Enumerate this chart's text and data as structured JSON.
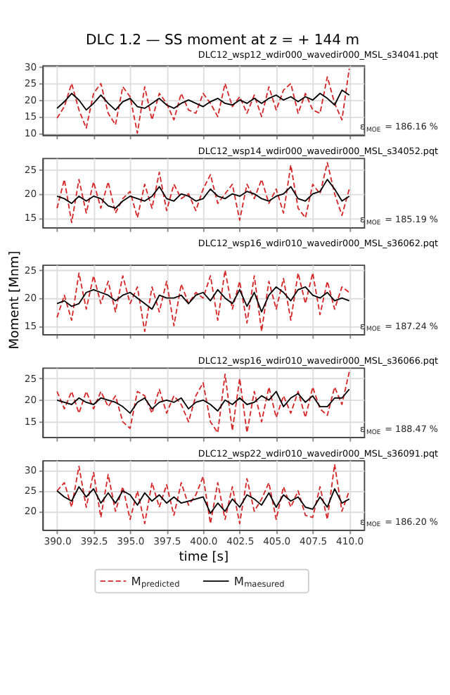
{
  "chart_data": [
    {
      "type": "line",
      "title": "DLC 1.2 — SS moment at z = + 144 m",
      "subtitle": "DLC12_wsp12_wdir000_wavedir000_MSL_s34041.pqt",
      "annotations": [
        "ε$_{MOE}$ = 186.16 %"
      ],
      "xlim": [
        389,
        411
      ],
      "xticks": [
        390.0,
        392.5,
        395.0,
        397.5,
        400.0,
        402.5,
        405.0,
        407.5,
        410.0
      ],
      "ylim": [
        9.5,
        30.5
      ],
      "yticks": [
        10,
        15,
        20,
        25,
        30
      ],
      "grid": true,
      "tick_labels": "y",
      "x": [
        390,
        390.5,
        391,
        391.5,
        392,
        392.5,
        393,
        393.5,
        394,
        394.5,
        395,
        395.5,
        396,
        396.5,
        397,
        397.5,
        398,
        398.5,
        399,
        399.5,
        400,
        400.5,
        401,
        401.5,
        402,
        402.5,
        403,
        403.5,
        404,
        404.5,
        405,
        405.5,
        406,
        406.5,
        407,
        407.5,
        408,
        408.5,
        409,
        409.5,
        410
      ],
      "series": [
        {
          "color": "#d62728",
          "line_style": "dashed",
          "values": [
            14.5,
            18,
            25,
            17,
            11.5,
            22,
            25,
            16,
            12.5,
            24,
            21,
            10,
            24,
            14,
            22,
            19,
            14,
            22,
            17,
            16,
            22,
            19,
            15,
            25,
            18,
            21,
            16,
            21.5,
            15,
            24,
            17,
            23,
            25,
            16,
            22,
            17,
            16,
            27,
            19,
            14,
            29.5
          ]
        },
        {
          "color": "#000000",
          "line_style": "solid",
          "values": [
            17.5,
            19.5,
            22,
            20,
            17,
            19,
            21.5,
            19,
            17,
            19.5,
            20.5,
            18,
            17.5,
            19,
            20.5,
            18.5,
            17.5,
            19,
            20,
            19,
            18,
            19.5,
            20.5,
            19,
            18.5,
            20,
            19,
            20.5,
            19,
            20.5,
            21.5,
            20,
            21,
            19.5,
            21,
            20,
            22,
            20.5,
            18.5,
            23,
            21.5
          ]
        }
      ]
    },
    {
      "type": "line",
      "subtitle": "DLC12_wsp14_wdir000_wavedir000_MSL_s34052.pqt",
      "annotations": [
        "ε$_{MOE}$ = 185.19 %"
      ],
      "xlim": [
        389,
        411
      ],
      "xticks": [
        390.0,
        392.5,
        395.0,
        397.5,
        400.0,
        402.5,
        405.0,
        407.5,
        410.0
      ],
      "ylim": [
        13,
        27.5
      ],
      "yticks": [
        15,
        20,
        25
      ],
      "grid": true,
      "tick_labels": "y",
      "x": [
        390,
        390.5,
        391,
        391.5,
        392,
        392.5,
        393,
        393.5,
        394,
        394.5,
        395,
        395.5,
        396,
        396.5,
        397,
        397.5,
        398,
        398.5,
        399,
        399.5,
        400,
        400.5,
        401,
        401.5,
        402,
        402.5,
        403,
        403.5,
        404,
        404.5,
        405,
        405.5,
        406,
        406.5,
        407,
        407.5,
        408,
        408.5,
        409,
        409.5,
        410
      ],
      "series": [
        {
          "color": "#d62728",
          "line_style": "dashed",
          "values": [
            17,
            23,
            14,
            23,
            16,
            22.5,
            17,
            22.5,
            16,
            19,
            20.5,
            15,
            22,
            17,
            24.5,
            16.5,
            22,
            19,
            20,
            16.5,
            21,
            24,
            18,
            20,
            22,
            14.5,
            22,
            19,
            23,
            18,
            21,
            16,
            26,
            17,
            15,
            22,
            20,
            26.5,
            20,
            15.5,
            21
          ]
        },
        {
          "color": "#000000",
          "line_style": "solid",
          "values": [
            19.5,
            19,
            18,
            19.5,
            18.5,
            19.5,
            19,
            17.5,
            17,
            18.5,
            19.5,
            19,
            18.5,
            19.5,
            21.5,
            19,
            18.5,
            20,
            19.5,
            18.5,
            19,
            21,
            19.5,
            19,
            20,
            19.5,
            20.5,
            20,
            19,
            18.5,
            19.5,
            20,
            21.5,
            19,
            18.5,
            20,
            20.5,
            23,
            21,
            18.5,
            19.5
          ]
        }
      ]
    },
    {
      "type": "line",
      "subtitle": "DLC12_wsp16_wdir010_wavedir000_MSL_s36062.pqt",
      "ylabel": "Moment [Mnm]",
      "annotations": [
        "ε$_{MOE}$ = 187.24 %"
      ],
      "xlim": [
        389,
        411
      ],
      "xticks": [
        390.0,
        392.5,
        395.0,
        397.5,
        400.0,
        402.5,
        405.0,
        407.5,
        410.0
      ],
      "ylim": [
        13.5,
        26
      ],
      "yticks": [
        15,
        20,
        25
      ],
      "grid": true,
      "tick_labels": "y",
      "x": [
        390,
        390.5,
        391,
        391.5,
        392,
        392.5,
        393,
        393.5,
        394,
        394.5,
        395,
        395.5,
        396,
        396.5,
        397,
        397.5,
        398,
        398.5,
        399,
        399.5,
        400,
        400.5,
        401,
        401.5,
        402,
        402.5,
        403,
        403.5,
        404,
        404.5,
        405,
        405.5,
        406,
        406.5,
        407,
        407.5,
        408,
        408.5,
        409,
        409.5,
        410
      ],
      "series": [
        {
          "color": "#d62728",
          "line_style": "dashed",
          "values": [
            16.5,
            20.5,
            16,
            24.5,
            18,
            24,
            19,
            23,
            17.5,
            24,
            19,
            22,
            14,
            22,
            17.5,
            23,
            15,
            22.5,
            19,
            21,
            20,
            24,
            16,
            25,
            18,
            23,
            15.5,
            24,
            14,
            23,
            18,
            23.5,
            16,
            24.5,
            19,
            24.5,
            17,
            23,
            18,
            22,
            21
          ]
        },
        {
          "color": "#000000",
          "line_style": "solid",
          "values": [
            19,
            19.5,
            18.5,
            19,
            21,
            21.5,
            21,
            20.5,
            19.5,
            20.5,
            21,
            20,
            19,
            18,
            20.5,
            20,
            20,
            20.5,
            19,
            20.5,
            21,
            19.5,
            21.5,
            20,
            19,
            21.5,
            18.5,
            21,
            17.5,
            20.5,
            22,
            21,
            19.5,
            21.5,
            22,
            20.5,
            20,
            21,
            19.5,
            20,
            19.5
          ]
        }
      ]
    },
    {
      "type": "line",
      "subtitle": "DLC12_wsp16_wdir010_wavedir000_MSL_s36066.pqt",
      "annotations": [
        "ε$_{MOE}$ = 188.47 %"
      ],
      "xlim": [
        389,
        411
      ],
      "xticks": [
        390.0,
        392.5,
        395.0,
        397.5,
        400.0,
        402.5,
        405.0,
        407.5,
        410.0
      ],
      "ylim": [
        11.5,
        27.5
      ],
      "yticks": [
        15,
        20,
        25
      ],
      "grid": true,
      "tick_labels": "y",
      "x": [
        390,
        390.5,
        391,
        391.5,
        392,
        392.5,
        393,
        393.5,
        394,
        394.5,
        395,
        395.5,
        396,
        396.5,
        397,
        397.5,
        398,
        398.5,
        399,
        399.5,
        400,
        400.5,
        401,
        401.5,
        402,
        402.5,
        403,
        403.5,
        404,
        404.5,
        405,
        405.5,
        406,
        406.5,
        407,
        407.5,
        408,
        408.5,
        409,
        409.5,
        410
      ],
      "series": [
        {
          "color": "#d62728",
          "line_style": "dashed",
          "values": [
            22,
            18,
            22,
            17,
            22,
            18,
            22,
            18.5,
            21,
            15,
            13.5,
            22,
            21,
            17,
            22.5,
            17,
            21,
            19,
            15,
            21,
            24,
            15,
            12.5,
            26,
            13,
            25,
            12.5,
            22,
            15,
            23,
            16,
            21,
            17,
            22,
            16,
            23,
            18,
            16.5,
            23,
            19,
            26.5
          ]
        },
        {
          "color": "#000000",
          "line_style": "solid",
          "values": [
            20,
            19.5,
            19,
            20.5,
            19.5,
            19,
            20.5,
            20,
            19.5,
            18.5,
            17,
            19.5,
            20.5,
            18,
            19.5,
            20,
            19.5,
            20.5,
            18,
            19.5,
            20,
            19,
            17.5,
            20,
            19,
            20.5,
            19,
            19.5,
            21,
            20,
            22,
            18.5,
            20.5,
            21.5,
            19.5,
            21,
            18.5,
            18.5,
            20.5,
            20.5,
            22.5
          ]
        }
      ]
    },
    {
      "type": "line",
      "subtitle": "DLC12_wsp22_wdir010_wavedir000_MSL_s36091.pqt",
      "xlabel": "time [s]",
      "annotations": [
        "ε$_{MOE}$ = 186.20 %"
      ],
      "xlim": [
        389,
        411
      ],
      "xticks": [
        {
          "value": 390,
          "label": "390.0"
        },
        392.5,
        {
          "value": 395,
          "label": "395.0"
        },
        397.5,
        {
          "value": 400,
          "label": "400.0"
        },
        402.5,
        {
          "value": 405,
          "label": "405.0"
        },
        407.5,
        {
          "value": 410,
          "label": "410.0"
        }
      ],
      "ylim": [
        15.5,
        32.5
      ],
      "yticks": [
        20,
        25,
        30
      ],
      "grid": true,
      "legend": "bottom",
      "x": [
        390,
        390.5,
        391,
        391.5,
        392,
        392.5,
        393,
        393.5,
        394,
        394.5,
        395,
        395.5,
        396,
        396.5,
        397,
        397.5,
        398,
        398.5,
        399,
        399.5,
        400,
        400.5,
        401,
        401.5,
        402,
        402.5,
        403,
        403.5,
        404,
        404.5,
        405,
        405.5,
        406,
        406.5,
        407,
        407.5,
        408,
        408.5,
        409,
        409.5,
        410
      ],
      "series": [
        {
          "name": "M$_{predicted}$",
          "color": "#d62728",
          "line_style": "dashed",
          "values": [
            25,
            27,
            21,
            31,
            21,
            29.5,
            18.5,
            29,
            20,
            26,
            18,
            25,
            17,
            27,
            21,
            26.5,
            19,
            27,
            21.5,
            24,
            28.5,
            17,
            27,
            18,
            26,
            17,
            28,
            20,
            23,
            27,
            18,
            26,
            21,
            25,
            19,
            18.5,
            26,
            18,
            31.5,
            20,
            25
          ]
        },
        {
          "name": "M$_{maesured}$",
          "color": "#000000",
          "line_style": "solid",
          "values": [
            25,
            23.5,
            22.5,
            26,
            23.5,
            25.5,
            22,
            24.5,
            22,
            25,
            24,
            21.5,
            24.5,
            22.5,
            24,
            22,
            23.5,
            22,
            22.5,
            23,
            23.5,
            19.5,
            22,
            20,
            23,
            21,
            24,
            23,
            21.5,
            24.5,
            21,
            24,
            22.5,
            23.5,
            21,
            20.5,
            23.5,
            21,
            25.5,
            22,
            23
          ]
        }
      ]
    }
  ]
}
